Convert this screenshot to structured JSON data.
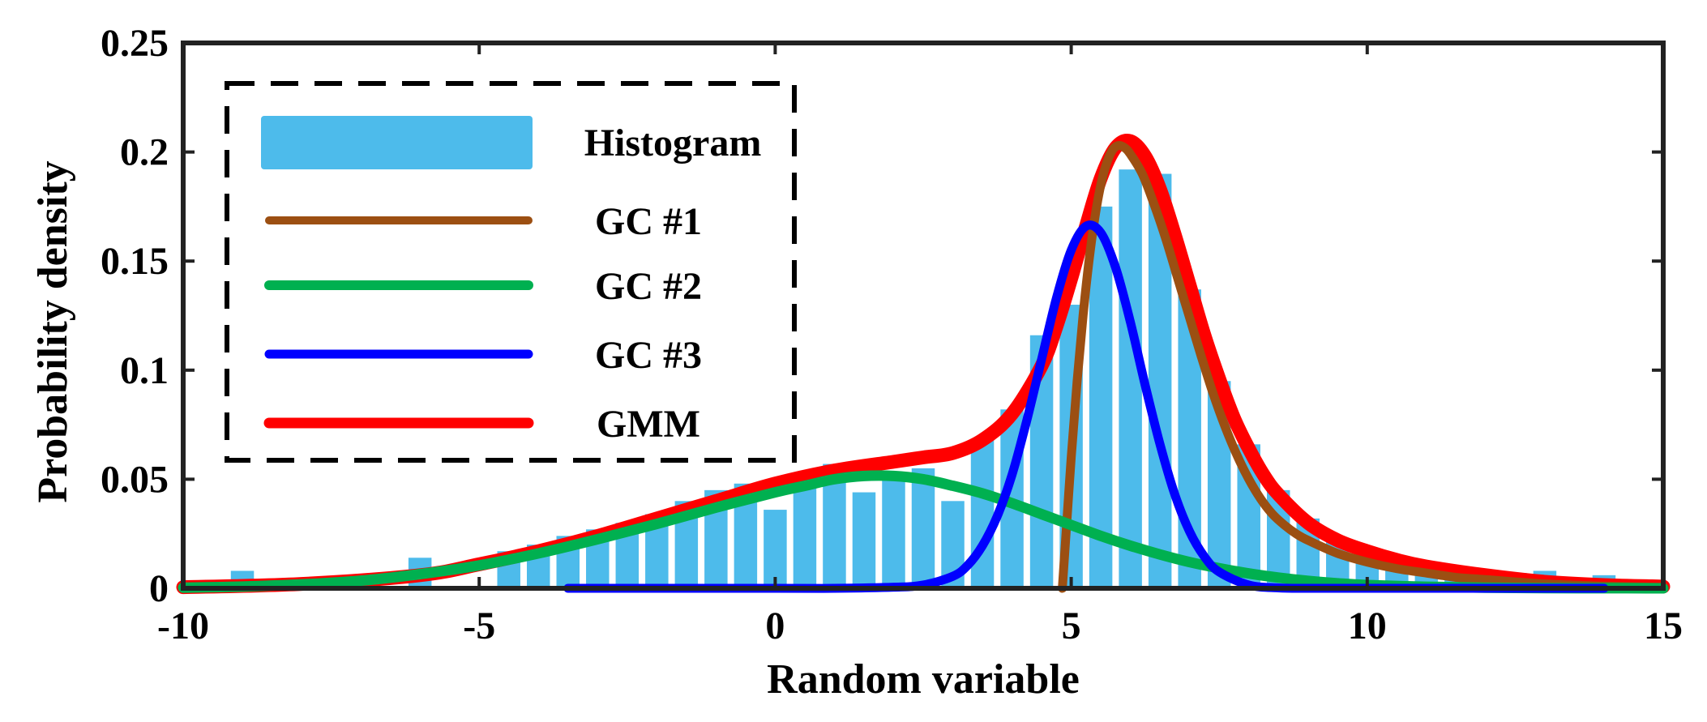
{
  "chart_data": {
    "type": "bar",
    "xlabel": "Random variable",
    "ylabel": "Probability density",
    "xlim": [
      -10,
      15
    ],
    "ylim": [
      0,
      0.25
    ],
    "xticks": [
      -10,
      -5,
      0,
      5,
      10,
      15
    ],
    "yticks": [
      0,
      0.05,
      0.1,
      0.15,
      0.2,
      0.25
    ],
    "xtick_labels": [
      "-10",
      "-5",
      "0",
      "5",
      "10",
      "15"
    ],
    "ytick_labels": [
      "0",
      "0.05",
      "0.1",
      "0.15",
      "0.2",
      "0.25"
    ],
    "grid": false,
    "legend_position": "top-left",
    "colors": {
      "histogram": "#4dbbeb",
      "gc1": "#9c4f12",
      "gc2": "#00b050",
      "gc3": "#0000ff",
      "gmm": "#ff0000"
    },
    "histogram": {
      "name": "Histogram",
      "bin_width": 0.5,
      "bin_centers": [
        -9.0,
        -6.0,
        -4.5,
        -4.0,
        -3.5,
        -3.0,
        -2.5,
        -2.0,
        -1.5,
        -1.0,
        -0.5,
        0.0,
        0.5,
        1.0,
        1.5,
        2.0,
        2.5,
        3.0,
        3.5,
        4.0,
        4.5,
        5.0,
        5.5,
        6.0,
        6.5,
        7.0,
        7.5,
        8.0,
        8.5,
        9.0,
        9.5,
        10.0,
        10.5,
        11.0,
        11.5,
        12.0,
        12.5,
        13.0,
        13.5,
        14.0
      ],
      "values": [
        0.008,
        0.014,
        0.017,
        0.02,
        0.024,
        0.027,
        0.03,
        0.034,
        0.04,
        0.045,
        0.048,
        0.036,
        0.052,
        0.057,
        0.044,
        0.052,
        0.055,
        0.04,
        0.068,
        0.082,
        0.116,
        0.13,
        0.175,
        0.192,
        0.19,
        0.137,
        0.095,
        0.066,
        0.045,
        0.032,
        0.022,
        0.016,
        0.013,
        0.012,
        0.01,
        0.008,
        0.007,
        0.008,
        0.005,
        0.006
      ]
    },
    "series": [
      {
        "name": "GC #1",
        "x": [
          4.85,
          4.9,
          5.0,
          5.1,
          5.2,
          5.3,
          5.4,
          5.5,
          5.6,
          5.7,
          5.8,
          5.9,
          6.0,
          6.2,
          6.4,
          6.6,
          6.8,
          7.0,
          7.2,
          7.4,
          7.6,
          7.8,
          8.0,
          8.2,
          8.4,
          8.6,
          8.8,
          9.0,
          9.5,
          10.0,
          10.5,
          11.0,
          11.5,
          12.0,
          13.0,
          14.0,
          15.0
        ],
        "y": [
          0.0,
          0.02,
          0.06,
          0.095,
          0.125,
          0.15,
          0.17,
          0.185,
          0.195,
          0.201,
          0.203,
          0.202,
          0.199,
          0.19,
          0.176,
          0.16,
          0.142,
          0.124,
          0.106,
          0.089,
          0.074,
          0.061,
          0.05,
          0.041,
          0.034,
          0.029,
          0.025,
          0.022,
          0.016,
          0.012,
          0.009,
          0.007,
          0.005,
          0.004,
          0.002,
          0.001,
          0.0004
        ]
      },
      {
        "name": "GC #2",
        "x": [
          -10,
          -9,
          -8,
          -7,
          -6,
          -5,
          -4,
          -3,
          -2,
          -1,
          0,
          0.5,
          1,
          1.5,
          2,
          2.5,
          3,
          3.5,
          4,
          4.5,
          5,
          5.5,
          6,
          6.5,
          7,
          7.5,
          8,
          8.5,
          9,
          9.5,
          10,
          11,
          12,
          13,
          14,
          15
        ],
        "y": [
          0.0003,
          0.0008,
          0.0018,
          0.0035,
          0.0065,
          0.0105,
          0.016,
          0.0225,
          0.0295,
          0.037,
          0.044,
          0.047,
          0.05,
          0.0515,
          0.0515,
          0.05,
          0.047,
          0.0435,
          0.039,
          0.034,
          0.029,
          0.024,
          0.0195,
          0.0155,
          0.012,
          0.0092,
          0.0068,
          0.0049,
          0.0034,
          0.0023,
          0.0015,
          0.0007,
          0.0003,
          0.0001,
          5e-05,
          0.0
        ]
      },
      {
        "name": "GC #3",
        "x": [
          -3.5,
          0,
          1,
          2,
          2.5,
          3.0,
          3.25,
          3.5,
          3.75,
          4.0,
          4.25,
          4.5,
          4.75,
          5.0,
          5.25,
          5.5,
          5.75,
          6.0,
          6.25,
          6.5,
          6.75,
          7.0,
          7.25,
          7.5,
          8.0,
          8.5,
          9.0,
          10.0,
          11.0,
          12.0,
          14.0
        ],
        "y": [
          0.0,
          0.0,
          0.0,
          0.0005,
          0.0015,
          0.0055,
          0.0105,
          0.0195,
          0.033,
          0.052,
          0.077,
          0.105,
          0.133,
          0.155,
          0.166,
          0.163,
          0.147,
          0.122,
          0.093,
          0.066,
          0.043,
          0.026,
          0.0145,
          0.0075,
          0.0015,
          0.0002,
          0.0,
          0.0,
          0.0,
          0.0,
          0.0
        ]
      },
      {
        "name": "GMM",
        "x": [
          -10,
          -8,
          -6,
          -5,
          -4,
          -3,
          -2,
          -1,
          0,
          1,
          2,
          2.5,
          3,
          3.5,
          4,
          4.5,
          4.75,
          5.0,
          5.25,
          5.5,
          5.75,
          6.0,
          6.25,
          6.5,
          6.75,
          7.0,
          7.25,
          7.5,
          7.75,
          8.0,
          8.25,
          8.5,
          9.0,
          9.5,
          10.0,
          10.5,
          11.0,
          12.0,
          13.0,
          14.0,
          15.0
        ],
        "y": [
          0.0005,
          0.002,
          0.006,
          0.011,
          0.017,
          0.024,
          0.032,
          0.04,
          0.048,
          0.054,
          0.058,
          0.06,
          0.062,
          0.068,
          0.08,
          0.102,
          0.12,
          0.142,
          0.166,
          0.188,
          0.202,
          0.205,
          0.198,
          0.183,
          0.162,
          0.139,
          0.116,
          0.096,
          0.078,
          0.064,
          0.052,
          0.043,
          0.03,
          0.022,
          0.017,
          0.013,
          0.01,
          0.006,
          0.003,
          0.0015,
          0.0008
        ]
      }
    ]
  }
}
